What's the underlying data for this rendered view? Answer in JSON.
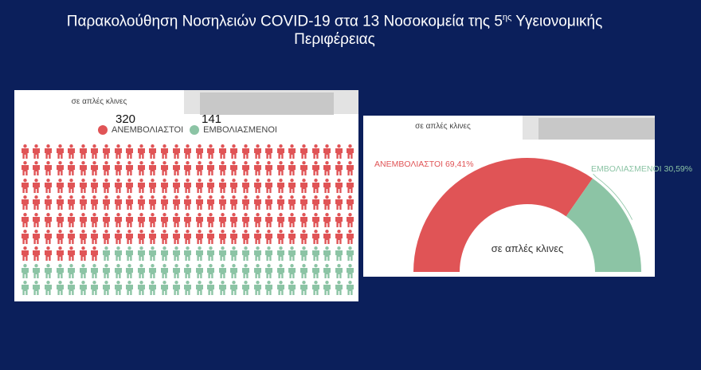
{
  "header": {
    "title_line1_pre": "Παρακολούθηση Νοσηλειών COVID-19 στα 13 Νοσοκομεία της  5",
    "title_sup": "ης",
    "title_line1_post": "  Υγειονομικής",
    "title_line2": "Περιφέρειας"
  },
  "left_panel": {
    "tab_label": "σε απλές κλινες",
    "unvaccinated_count": "320",
    "vaccinated_count": "141",
    "legend_unvaccinated": "ΑΝΕΜΒΟΛΙΑΣΤΟΙ",
    "legend_vaccinated": "ΕΜΒΟΛΙΑΣΜΕΝΟΙ",
    "pictogram_icons": {
      "red": 181,
      "green": 80
    }
  },
  "right_panel": {
    "tab_label": "σε απλές κλινες",
    "label_unvaccinated": "ΑΝΕΜΒΟΛΙΑΣΤΟΙ 69,41%",
    "label_vaccinated": "ΕΜΒΟΛΙΑΣΜΕΝΟΙ 30,59%",
    "center_label": "σε απλές κλινες"
  },
  "chart_data": [
    {
      "type": "pictogram",
      "categories": [
        "ΑΝΕΜΒΟΛΙΑΣΤΟΙ",
        "ΕΜΒΟΛΙΑΣΜΕΝΟΙ"
      ],
      "values": [
        320,
        141
      ]
    },
    {
      "type": "pie",
      "subtype": "half-donut",
      "categories": [
        "ΑΝΕΜΒΟΛΙΑΣΤΟΙ",
        "ΕΜΒΟΛΙΑΣΜΕΝΟΙ"
      ],
      "values": [
        69.41,
        30.59
      ]
    }
  ],
  "colors": {
    "background": "#0b1f5b",
    "unvaccinated": "#e05456",
    "vaccinated": "#8cc4a5"
  }
}
